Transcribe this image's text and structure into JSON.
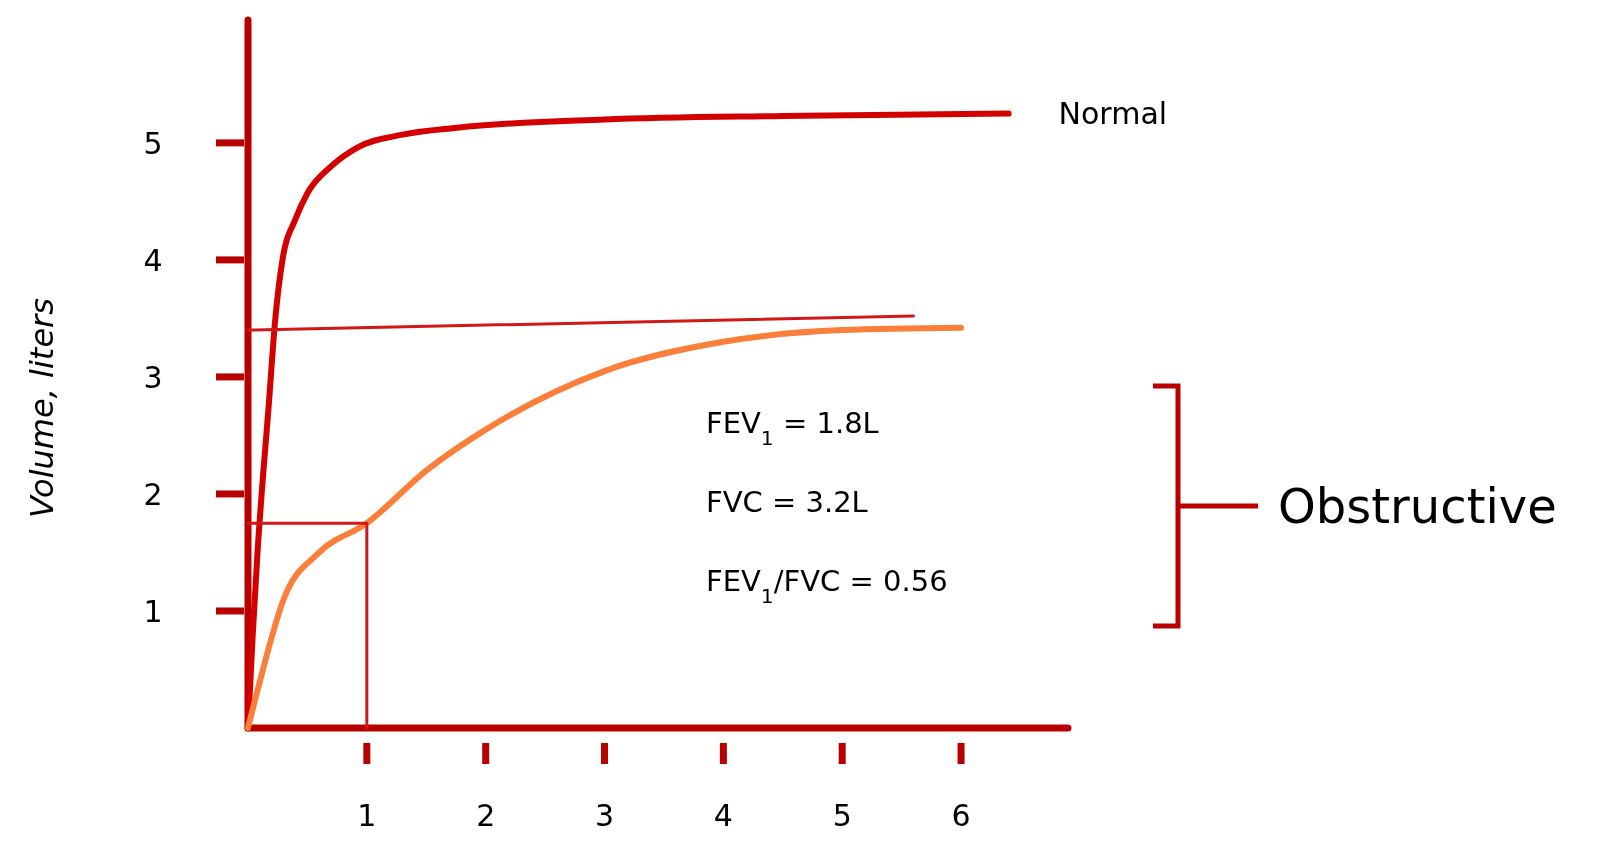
{
  "chart_data": {
    "type": "line",
    "ylabel": "Volume, liters",
    "xlim": [
      0,
      6.9
    ],
    "ylim": [
      0,
      6.05
    ],
    "xticks": [
      1,
      2,
      3,
      4,
      5,
      6
    ],
    "yticks": [
      1,
      2,
      3,
      4,
      5
    ],
    "grid": false,
    "marker": "none",
    "line_style": "solid",
    "series": [
      {
        "name": "Normal",
        "color": "#d40000",
        "x": [
          0,
          0.04,
          0.08,
          0.13,
          0.17,
          0.23,
          0.29,
          0.4,
          0.5,
          0.7,
          0.92,
          1.3,
          1.76,
          3.0,
          4.5,
          6.4
        ],
        "values": [
          0,
          0.8,
          1.5,
          2.2,
          2.7,
          3.5,
          4.0,
          4.35,
          4.57,
          4.8,
          4.96,
          5.07,
          5.13,
          5.2,
          5.23,
          5.25
        ]
      },
      {
        "name": "Obstructive",
        "color": "#fb7f3a",
        "x": [
          0,
          0.1,
          0.3,
          0.6,
          1,
          1.5,
          2,
          3,
          4,
          5,
          6
        ],
        "values": [
          0,
          0.4,
          1.1,
          1.5,
          1.75,
          2.2,
          2.55,
          3.05,
          3.3,
          3.4,
          3.42
        ]
      },
      {
        "color": "#d01818",
        "x": [
          0,
          5.6
        ],
        "values": [
          3.4,
          3.52
        ]
      },
      {
        "color": "#d01818",
        "x": [
          0,
          1,
          1
        ],
        "values": [
          1.75,
          1.75,
          0
        ]
      }
    ],
    "annotations": [
      "FEV$_{1}$ = 1.8L",
      "FVC = 3.2L",
      "FEV$_{1}$/FVC = 0.56"
    ]
  }
}
